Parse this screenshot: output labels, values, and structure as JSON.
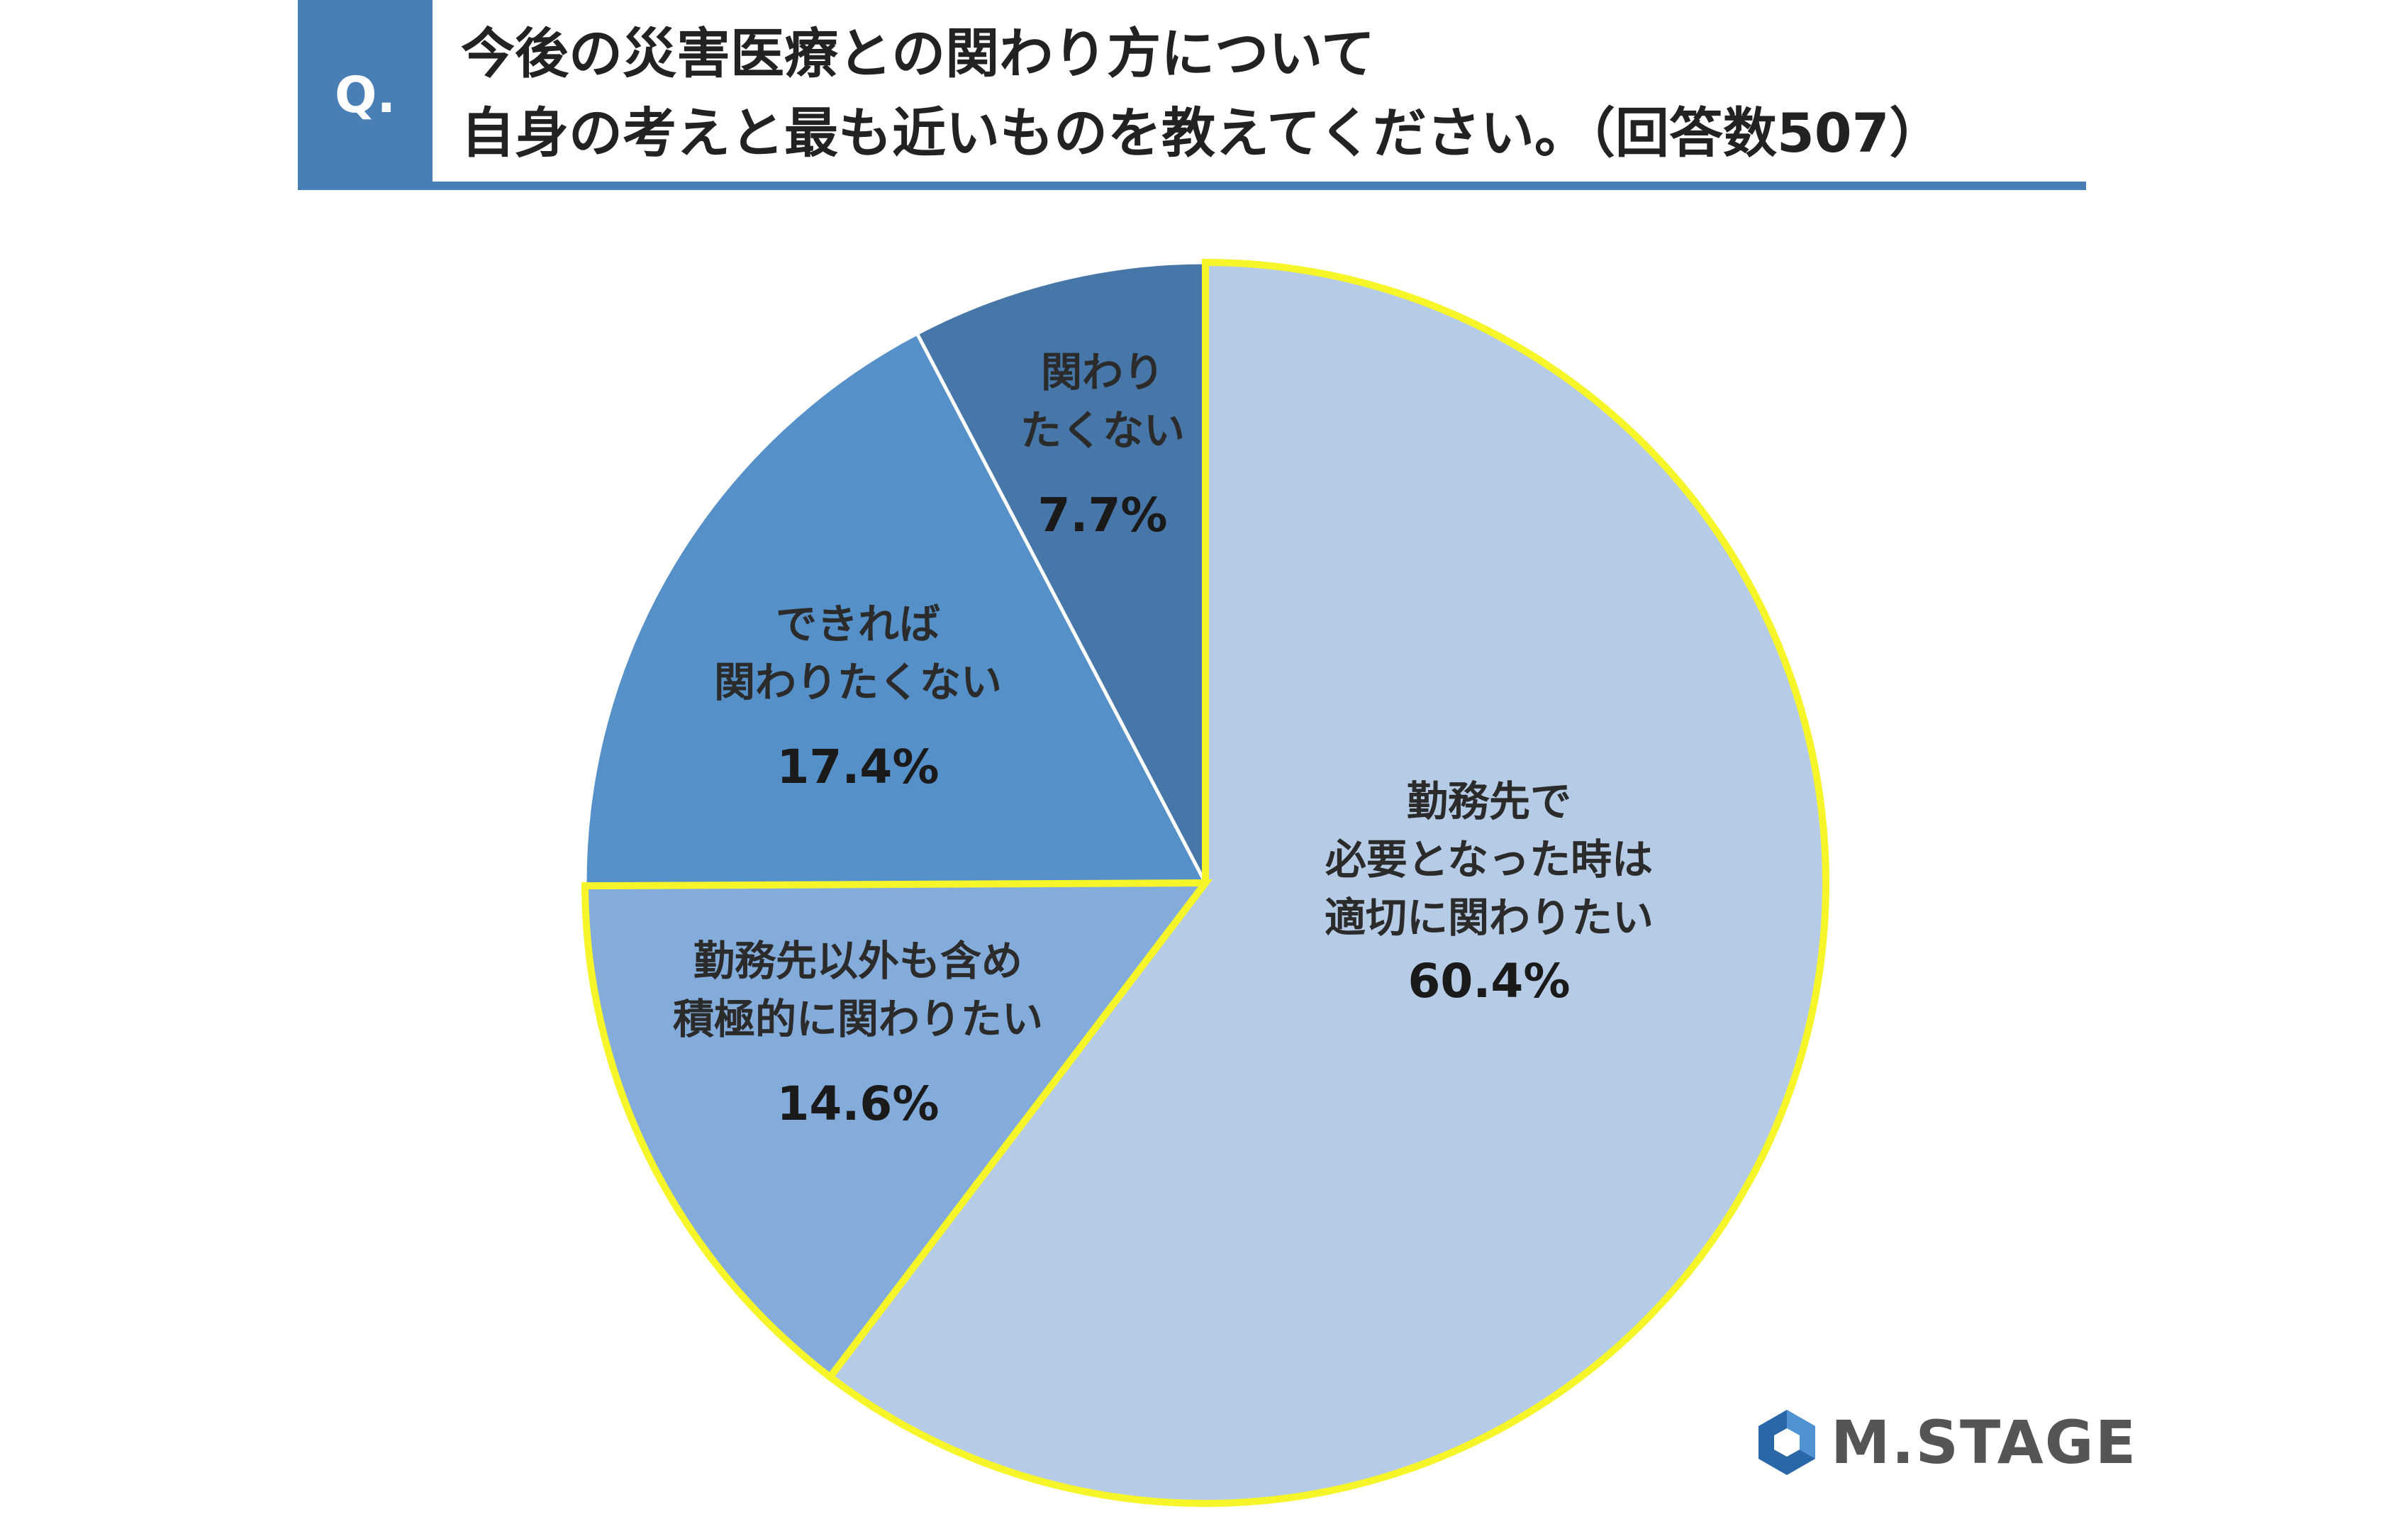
{
  "header": {
    "badge": "Q.",
    "question_line1": "今後の災害医療との関わり方について",
    "question_line2": "自身の考えと最も近いものを教えてください。（回答数507）"
  },
  "chart_data": {
    "type": "pie",
    "start": "12 o'clock, clockwise",
    "slices": [
      {
        "label_lines": [
          "勤務先で",
          "必要となった時は",
          "適切に関わりたい"
        ],
        "value": 60.4,
        "value_text": "60.4%",
        "color": "#b6cce6",
        "highlighted": true
      },
      {
        "label_lines": [
          "勤務先以外も含め",
          "積極的に関わりたい"
        ],
        "value": 14.6,
        "value_text": "14.6%",
        "color": "#84acdb",
        "highlighted": true
      },
      {
        "label_lines": [
          "できれば",
          "関わりたくない"
        ],
        "value": 17.4,
        "value_text": "17.4%",
        "color": "#5590c8",
        "highlighted": false
      },
      {
        "label_lines": [
          "関わり",
          "たくない"
        ],
        "value": 7.7,
        "value_text": "7.7%",
        "color": "#4677a8",
        "highlighted": false
      }
    ],
    "highlight_color": "#f5f52a"
  },
  "logo": {
    "text": "M.STAGE",
    "icon": "hexagon-logo-icon"
  }
}
